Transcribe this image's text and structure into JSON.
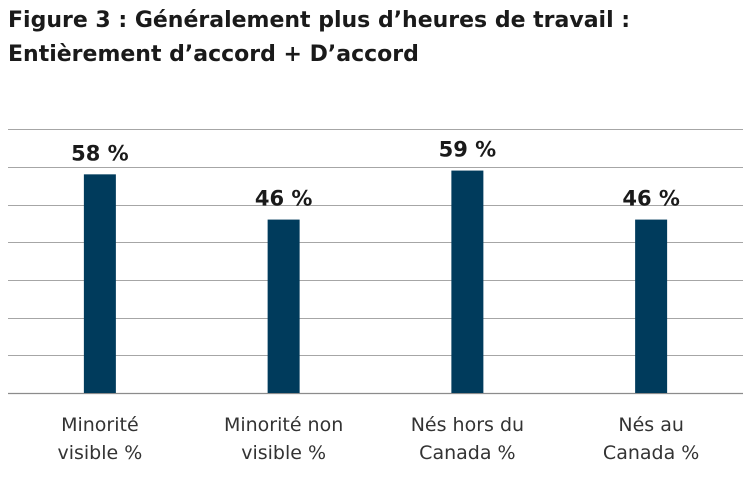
{
  "title": {
    "line1": "Figure 3 : Généralement plus d’heures de travail :",
    "line2": "Entièrement d’accord + D’accord"
  },
  "colors": {
    "bar": "#003b5c",
    "grid": "#a6a6a6",
    "axis": "#8c8c8c"
  },
  "chart_data": {
    "type": "bar",
    "title": "Figure 3 : Généralement plus d’heures de travail : Entièrement d’accord + D’accord",
    "categories": [
      [
        "Minorité",
        "visible %"
      ],
      [
        "Minorité non",
        "visible %"
      ],
      [
        "Nés hors du",
        "Canada %"
      ],
      [
        "Nés au",
        "Canada %"
      ]
    ],
    "values": [
      58,
      46,
      59,
      46
    ],
    "value_labels": [
      "58 %",
      "46 %",
      "59 %",
      "46 %"
    ],
    "ylim": [
      0,
      70
    ],
    "y_tick_step": 10,
    "grid": true,
    "legend": "none"
  }
}
